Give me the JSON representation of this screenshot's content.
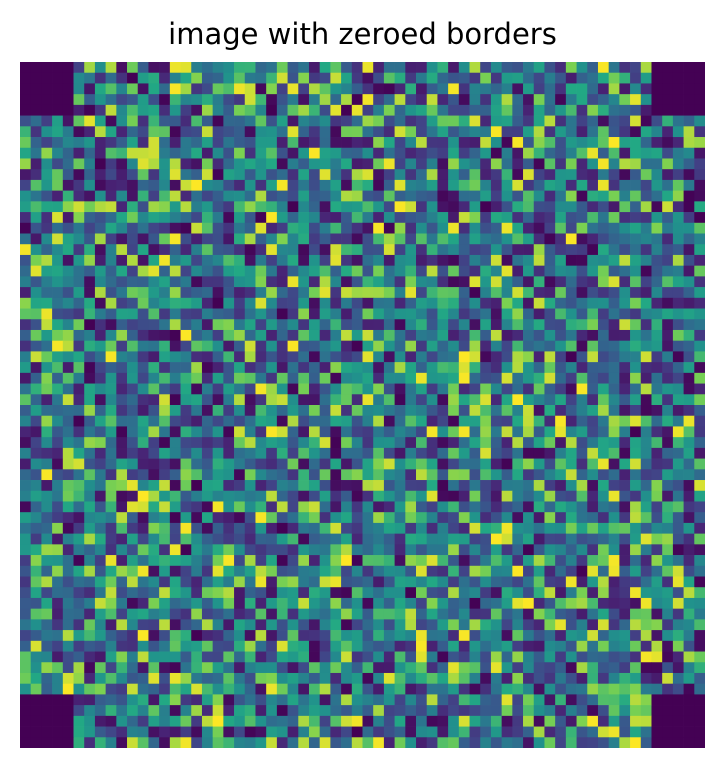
{
  "chart_data": {
    "type": "heatmap",
    "title": "image with zeroed borders",
    "colormap": "viridis",
    "grid": false,
    "axes_visible": false,
    "rows": 64,
    "cols": 64,
    "value_range": [
      0,
      1
    ],
    "zeroed_regions": [
      {
        "label": "top-left",
        "rows": [
          0,
          4
        ],
        "cols": [
          0,
          4
        ],
        "value": 0
      },
      {
        "label": "top-right",
        "rows": [
          0,
          4
        ],
        "cols": [
          59,
          63
        ],
        "value": 0
      },
      {
        "label": "bottom-left",
        "rows": [
          59,
          63
        ],
        "cols": [
          0,
          4
        ],
        "value": 0
      },
      {
        "label": "bottom-right",
        "rows": [
          59,
          63
        ],
        "cols": [
          59,
          63
        ],
        "value": 0
      }
    ],
    "random_seed": 7,
    "colors": {
      "zero": "#440154",
      "mid": "#21918c",
      "high": "#fde725"
    }
  }
}
